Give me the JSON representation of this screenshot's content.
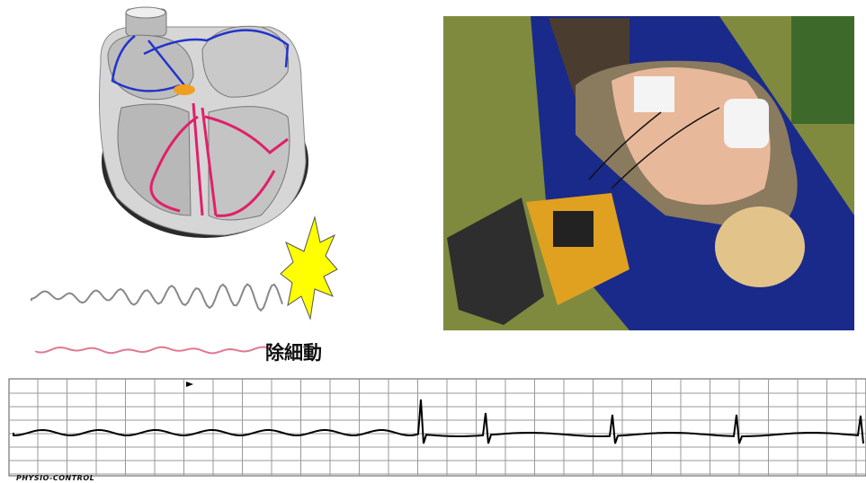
{
  "diagram": {
    "shock_label": "除細動"
  },
  "ecg_strip": {
    "brand": "PHYSIO-CONTROL"
  }
}
